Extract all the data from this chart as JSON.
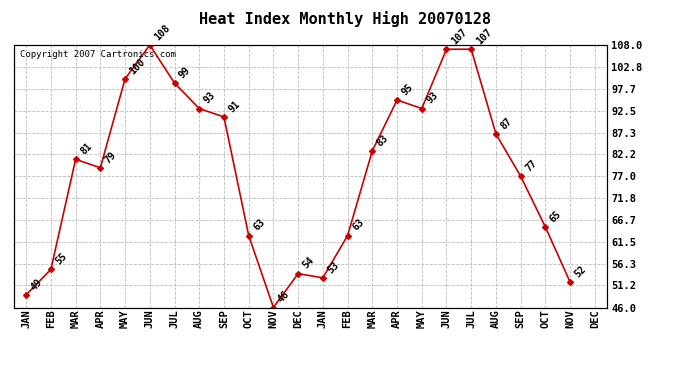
{
  "title": "Heat Index Monthly High 20070128",
  "copyright": "Copyright 2007 Cartronics.com",
  "months": [
    "JAN",
    "FEB",
    "MAR",
    "APR",
    "MAY",
    "JUN",
    "JUL",
    "AUG",
    "SEP",
    "OCT",
    "NOV",
    "DEC",
    "JAN",
    "FEB",
    "MAR",
    "APR",
    "MAY",
    "JUN",
    "JUL",
    "AUG",
    "SEP",
    "OCT",
    "NOV",
    "DEC"
  ],
  "values": [
    49,
    55,
    81,
    79,
    100,
    108,
    99,
    93,
    91,
    63,
    46,
    54,
    53,
    63,
    83,
    95,
    93,
    107,
    107,
    87,
    77,
    65,
    52
  ],
  "ylim": [
    46.0,
    108.0
  ],
  "yticks": [
    46.0,
    51.2,
    56.3,
    61.5,
    66.7,
    71.8,
    77.0,
    82.2,
    87.3,
    92.5,
    97.7,
    102.8,
    108.0
  ],
  "line_color": "#cc0000",
  "marker_color": "#cc0000",
  "bg_color": "#ffffff",
  "grid_color": "#bbbbbb",
  "title_fontsize": 11,
  "copyright_fontsize": 6.5,
  "label_fontsize": 7,
  "tick_fontsize": 7.5
}
